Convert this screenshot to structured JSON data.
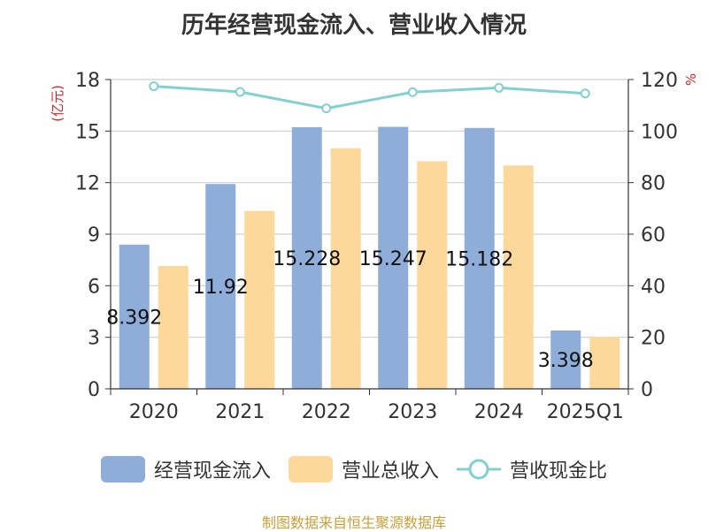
{
  "chart_data": {
    "type": "bar",
    "title": "历年经营现金流入、营业收入情况",
    "categories": [
      "2020",
      "2021",
      "2022",
      "2023",
      "2024",
      "2025Q1"
    ],
    "y_left": {
      "label": "(亿元)",
      "ylim": [
        0,
        18
      ],
      "ticks": [
        0,
        3,
        6,
        9,
        12,
        15,
        18
      ]
    },
    "y_right": {
      "label": "%",
      "ylim": [
        0,
        120
      ],
      "ticks": [
        0,
        20,
        40,
        60,
        80,
        100,
        120
      ]
    },
    "series": [
      {
        "name": "经营现金流入",
        "kind": "bar",
        "axis": "left",
        "color": "#8eadd9",
        "values": [
          8.392,
          11.92,
          15.228,
          15.247,
          15.182,
          3.398
        ],
        "labels": [
          "8.392",
          "11.92",
          "15.228",
          "15.247",
          "15.182",
          "3.398"
        ]
      },
      {
        "name": "营业总收入",
        "kind": "bar",
        "axis": "left",
        "color": "#fdd89b",
        "values": [
          7.15,
          10.35,
          14.0,
          13.25,
          13.0,
          3.02
        ]
      },
      {
        "name": "营收现金比",
        "kind": "line",
        "axis": "right",
        "color": "#82d0d2",
        "values": [
          117.4,
          115.2,
          108.8,
          115.1,
          116.8,
          114.6
        ]
      }
    ],
    "grid": true,
    "legend_position": "bottom"
  },
  "footer": "制图数据来自恒生聚源数据库"
}
